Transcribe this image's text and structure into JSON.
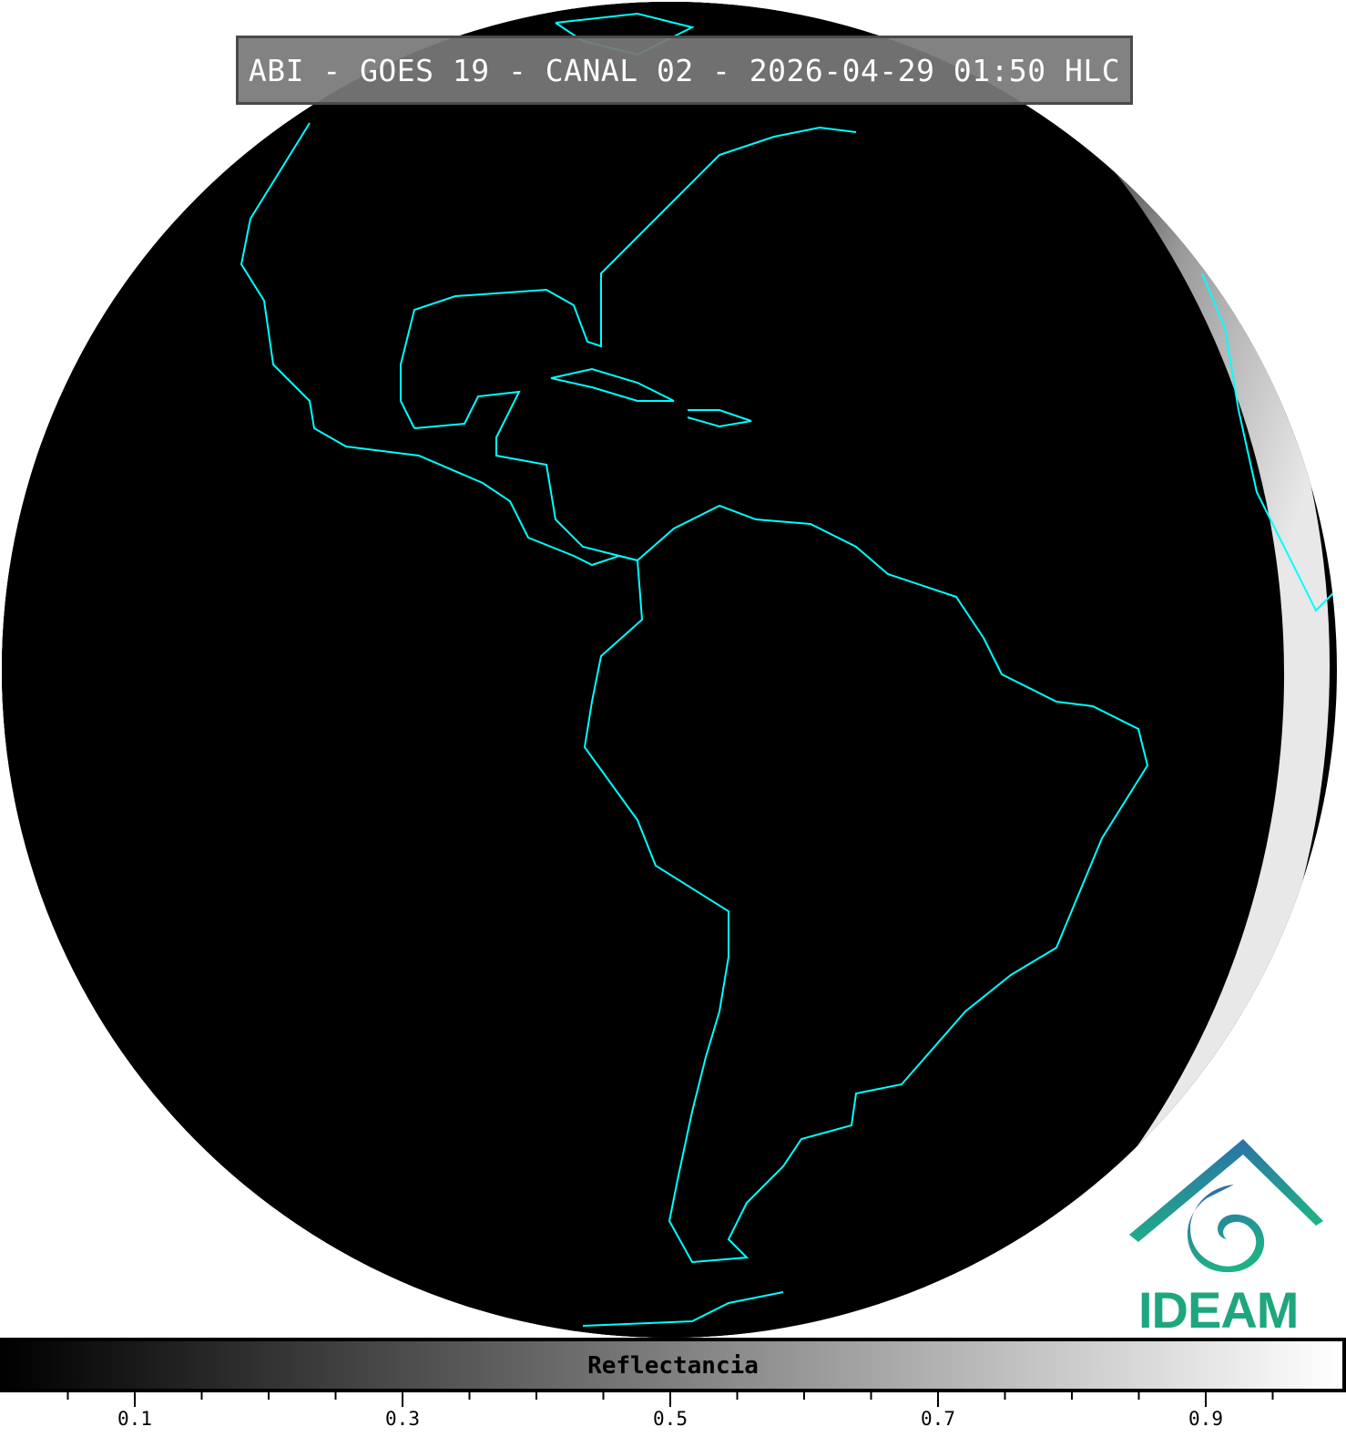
{
  "title": "ABI - GOES 19 - CANAL 02 - 2026-04-29 01:50 HLC",
  "colorbar": {
    "label": "Reflectancia",
    "range": [
      0,
      1
    ],
    "colormap": "gray",
    "major_ticks": [
      "0.1",
      "0.3",
      "0.5",
      "0.7",
      "0.9"
    ],
    "minor_tick_step": 0.05
  },
  "colors": {
    "coastline": "#00ffff",
    "space": "#ffffff",
    "night": "#000000"
  },
  "logo": {
    "text": "IDEAM"
  }
}
